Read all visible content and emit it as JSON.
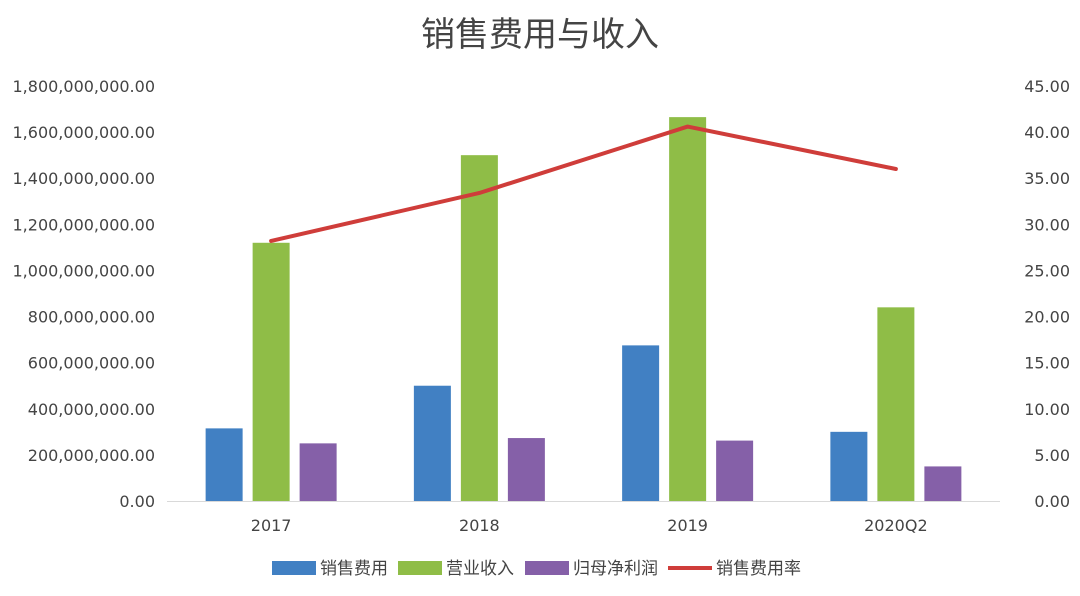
{
  "chart_data": {
    "type": "bar",
    "title": "销售费用与收入",
    "categories": [
      "2017",
      "2018",
      "2019",
      "2020Q2"
    ],
    "series": [
      {
        "name": "销售费用",
        "type": "bar",
        "axis": "left",
        "color": "#4180C3",
        "values": [
          315000000,
          500000000,
          675000000,
          300000000
        ]
      },
      {
        "name": "营业收入",
        "type": "bar",
        "axis": "left",
        "color": "#8FBD47",
        "values": [
          1120000000,
          1500000000,
          1665000000,
          840000000
        ]
      },
      {
        "name": "归母净利润",
        "type": "bar",
        "axis": "left",
        "color": "#8560A8",
        "values": [
          250000000,
          273000000,
          262000000,
          150000000
        ]
      },
      {
        "name": "销售费用率",
        "type": "line",
        "axis": "right",
        "color": "#CF3D3A",
        "values": [
          28.2,
          33.4,
          40.6,
          36.0
        ]
      }
    ],
    "y_left": {
      "ylim": [
        0,
        1800000000
      ],
      "ticks": [
        "0.00",
        "200,000,000.00",
        "400,000,000.00",
        "600,000,000.00",
        "800,000,000.00",
        "1,000,000,000.00",
        "1,200,000,000.00",
        "1,400,000,000.00",
        "1,600,000,000.00",
        "1,800,000,000.00"
      ]
    },
    "y_right": {
      "ylim": [
        0,
        45
      ],
      "ticks": [
        "0.00",
        "5.00",
        "10.00",
        "15.00",
        "20.00",
        "25.00",
        "30.00",
        "35.00",
        "40.00",
        "45.00"
      ]
    },
    "grid": false,
    "legend": "bottom"
  }
}
